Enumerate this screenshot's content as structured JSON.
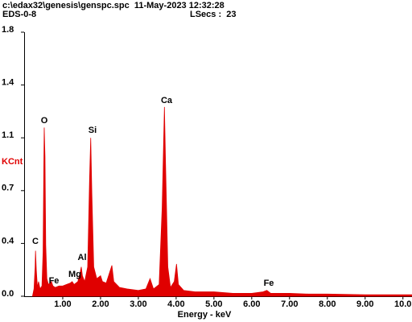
{
  "chart_data": {
    "type": "area",
    "title": "c:\\edax32\\genesis\\genspc.spc  11-May-2023 12:32:28",
    "subtitle": "EDS-0-8",
    "live_time": "LSecs :  23",
    "x_label": "Energy - keV",
    "y_label": "KCnt",
    "y_label_color": "#e00000",
    "xlim": [
      0,
      10.24
    ],
    "ylim": [
      0,
      1.8
    ],
    "xticks": [
      {
        "value": 1,
        "label": "1.00"
      },
      {
        "value": 2,
        "label": "2.00"
      },
      {
        "value": 3,
        "label": "3.00"
      },
      {
        "value": 4,
        "label": "4.00"
      },
      {
        "value": 5,
        "label": "5.00"
      },
      {
        "value": 6,
        "label": "6.00"
      },
      {
        "value": 7,
        "label": "7.00"
      },
      {
        "value": 8,
        "label": "8.00"
      },
      {
        "value": 9,
        "label": "9.00"
      },
      {
        "value": 10,
        "label": "10.0"
      }
    ],
    "yticks": [
      {
        "value": 0,
        "label": "0.0"
      },
      {
        "value": 0.36,
        "label": "0.4"
      },
      {
        "value": 0.72,
        "label": "0.7"
      },
      {
        "value": 1.08,
        "label": "1.1"
      },
      {
        "value": 1.44,
        "label": "1.4"
      },
      {
        "value": 1.8,
        "label": "1.8"
      }
    ],
    "annotations": [
      "C",
      "O",
      "Fe",
      "Mg",
      "Al",
      "Si",
      "Ca",
      "Fe"
    ],
    "series": [
      {
        "color": "#e00000",
        "x": [
          0.2,
          0.24,
          0.27,
          0.28,
          0.3,
          0.33,
          0.36,
          0.4,
          0.45,
          0.48,
          0.5,
          0.51,
          0.53,
          0.55,
          0.58,
          0.62,
          0.66,
          0.7,
          0.74,
          0.8,
          0.9,
          1.0,
          1.1,
          1.2,
          1.25,
          1.3,
          1.4,
          1.46,
          1.49,
          1.52,
          1.58,
          1.66,
          1.71,
          1.74,
          1.77,
          1.82,
          1.9,
          2.0,
          2.05,
          2.15,
          2.3,
          2.35,
          2.5,
          2.7,
          3.0,
          3.2,
          3.31,
          3.4,
          3.55,
          3.63,
          3.69,
          3.72,
          3.78,
          3.85,
          3.95,
          4.01,
          4.06,
          4.2,
          4.5,
          5.0,
          5.5,
          6.0,
          6.3,
          6.4,
          6.5,
          7.0,
          7.5,
          8.0,
          9.0,
          10.0,
          10.24
        ],
        "values": [
          0.0,
          0.05,
          0.2,
          0.31,
          0.18,
          0.06,
          0.1,
          0.05,
          0.07,
          0.3,
          0.9,
          1.15,
          0.95,
          0.35,
          0.12,
          0.08,
          0.09,
          0.1,
          0.07,
          0.06,
          0.07,
          0.07,
          0.08,
          0.09,
          0.1,
          0.08,
          0.1,
          0.16,
          0.2,
          0.14,
          0.1,
          0.2,
          0.8,
          1.08,
          0.7,
          0.2,
          0.12,
          0.14,
          0.1,
          0.09,
          0.21,
          0.1,
          0.06,
          0.05,
          0.04,
          0.05,
          0.12,
          0.05,
          0.08,
          0.6,
          1.29,
          0.9,
          0.2,
          0.06,
          0.1,
          0.22,
          0.08,
          0.04,
          0.03,
          0.03,
          0.02,
          0.02,
          0.03,
          0.04,
          0.02,
          0.02,
          0.015,
          0.015,
          0.01,
          0.01,
          0.01
        ]
      }
    ]
  }
}
